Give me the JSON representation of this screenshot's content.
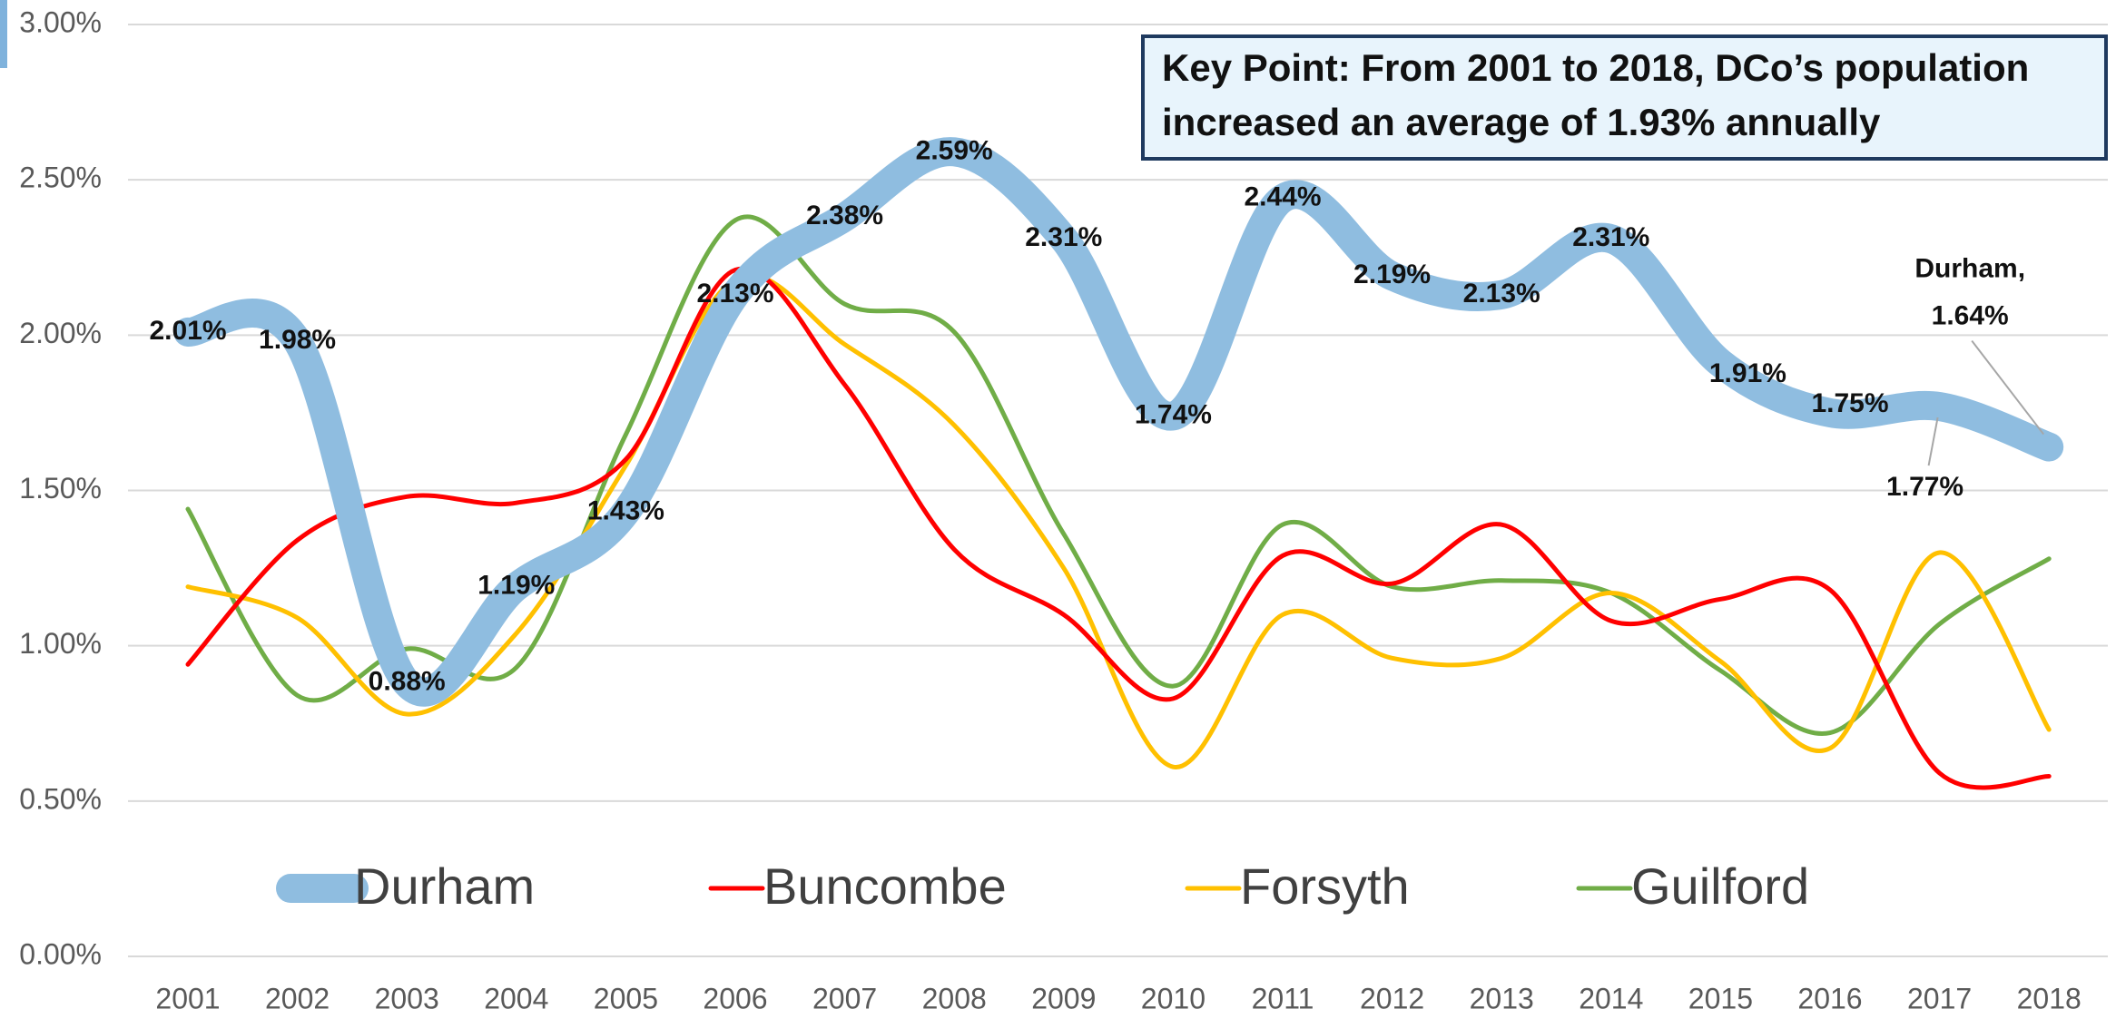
{
  "chart_data": {
    "type": "line",
    "categories": [
      "2001",
      "2002",
      "2003",
      "2004",
      "2005",
      "2006",
      "2007",
      "2008",
      "2009",
      "2010",
      "2011",
      "2012",
      "2013",
      "2014",
      "2015",
      "2016",
      "2017",
      "2018"
    ],
    "ylim": [
      0,
      3
    ],
    "yticks": [
      {
        "value": 0,
        "label": "0.00%"
      },
      {
        "value": 0.5,
        "label": "0.50%"
      },
      {
        "value": 1,
        "label": "1.00%"
      },
      {
        "value": 1.5,
        "label": "1.50%"
      },
      {
        "value": 2,
        "label": "2.00%"
      },
      {
        "value": 2.5,
        "label": "2.50%"
      },
      {
        "value": 3,
        "label": "3.00%"
      }
    ],
    "grid": true,
    "series": [
      {
        "name": "Durham",
        "color": "#8fbde0",
        "values": [
          2.01,
          1.98,
          0.88,
          1.19,
          1.43,
          2.13,
          2.38,
          2.59,
          2.31,
          1.74,
          2.44,
          2.19,
          2.13,
          2.31,
          1.91,
          1.75,
          1.77,
          1.64
        ],
        "value_labels": [
          "2.01%",
          "1.98%",
          "0.88%",
          "1.19%",
          "1.43%",
          "2.13%",
          "2.38%",
          "2.59%",
          "2.31%",
          "1.74%",
          "2.44%",
          "2.19%",
          "2.13%",
          "2.31%",
          "1.91%",
          "1.75%",
          "1.77%",
          "1.64%"
        ]
      },
      {
        "name": "Buncombe",
        "color": "#ff0000",
        "values": [
          0.94,
          1.34,
          1.48,
          1.46,
          1.6,
          2.21,
          1.84,
          1.31,
          1.1,
          0.83,
          1.29,
          1.2,
          1.39,
          1.08,
          1.15,
          1.18,
          0.59,
          0.58
        ]
      },
      {
        "name": "Forsyth",
        "color": "#ffc000",
        "values": [
          1.19,
          1.09,
          0.78,
          1.04,
          1.58,
          2.18,
          1.97,
          1.71,
          1.25,
          0.61,
          1.1,
          0.96,
          0.96,
          1.17,
          0.95,
          0.67,
          1.3,
          0.73
        ]
      },
      {
        "name": "Guilford",
        "color": "#70ad47",
        "values": [
          1.44,
          0.84,
          0.99,
          0.93,
          1.68,
          2.37,
          2.1,
          2.01,
          1.36,
          0.87,
          1.39,
          1.19,
          1.21,
          1.17,
          0.92,
          0.72,
          1.07,
          1.28
        ]
      }
    ],
    "annotations": [
      {
        "text": "Key Point: From 2001 to 2018, DCo’s population"
      },
      {
        "text": "increased an average of 1.93% annually"
      },
      {
        "text": "Durham,"
      }
    ]
  }
}
